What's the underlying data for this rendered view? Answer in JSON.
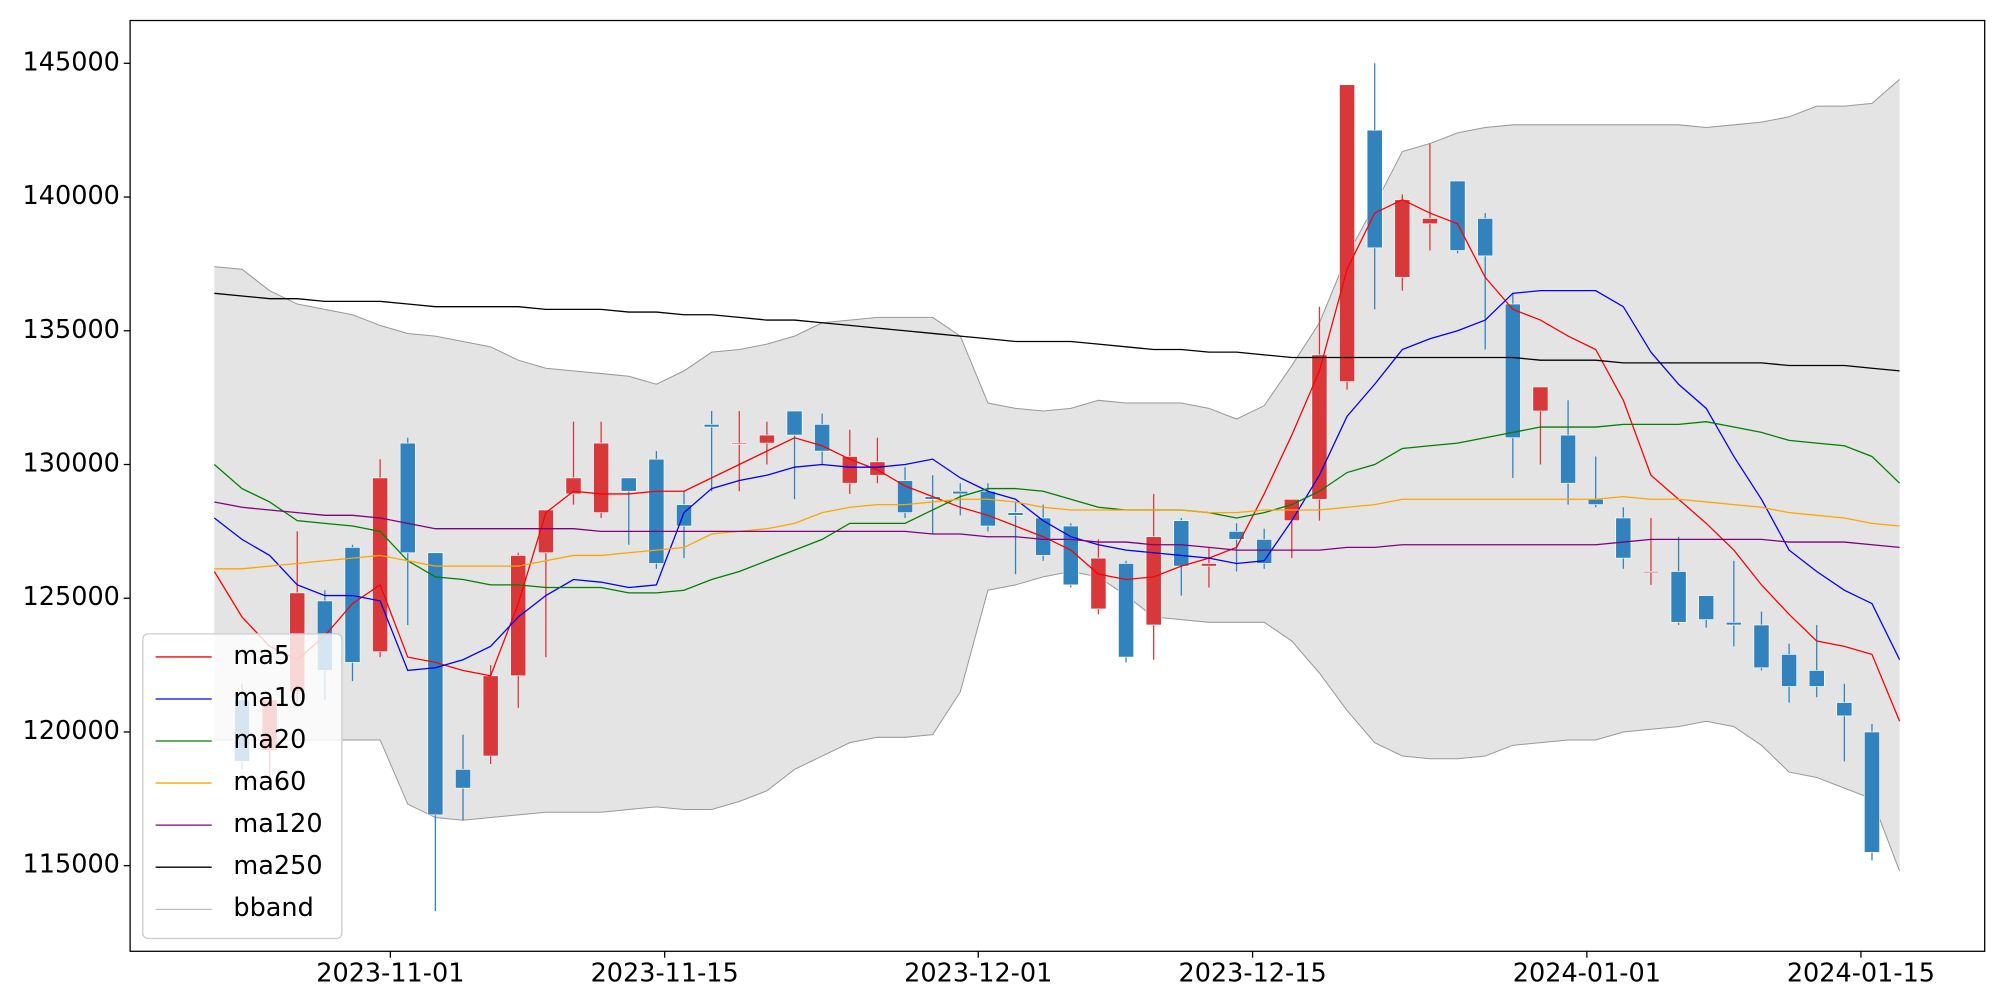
{
  "chart_data": {
    "type": "candlestick",
    "xlim": [
      -3.05,
      64.08
    ],
    "xticks": [
      {
        "value": 6.37,
        "label": "2023-11-01"
      },
      {
        "value": 16.3,
        "label": "2023-11-15"
      },
      {
        "value": 27.65,
        "label": "2023-12-01"
      },
      {
        "value": 37.58,
        "label": "2023-12-15"
      },
      {
        "value": 49.68,
        "label": "2024-01-01"
      },
      {
        "value": 59.6,
        "label": "2024-01-15"
      }
    ],
    "ylim": [
      111800,
      146600
    ],
    "yticks": [
      115000,
      120000,
      125000,
      130000,
      135000,
      140000,
      145000
    ],
    "up_color": "#d9383a",
    "down_color": "#3182bd",
    "legend": "lower left",
    "candles": {
      "open": [
        null,
        121200,
        119300,
        121500,
        124900,
        126900,
        123000,
        130800,
        126700,
        118600,
        119100,
        122100,
        126700,
        128900,
        128200,
        129500,
        130200,
        128500,
        131500,
        130800,
        130800,
        132000,
        131500,
        129300,
        129600,
        129400,
        128800,
        129000,
        129000,
        128200,
        128000,
        127700,
        124600,
        126300,
        124000,
        127900,
        126200,
        127500,
        127200,
        127900,
        128700,
        133100,
        142500,
        137000,
        139000,
        140600,
        139200,
        136000,
        132000,
        131100,
        128700,
        128000,
        126000,
        126000,
        125100,
        124100,
        124000,
        122900,
        122300,
        121100,
        120000,
        null
      ],
      "high": [
        null,
        121800,
        121500,
        127500,
        125300,
        127000,
        130200,
        131000,
        126700,
        119900,
        122500,
        126700,
        128300,
        131600,
        131600,
        129500,
        130500,
        129000,
        132000,
        132000,
        131600,
        132000,
        131900,
        131300,
        131000,
        129900,
        129600,
        129300,
        129300,
        128600,
        128500,
        127800,
        127200,
        126400,
        128900,
        128000,
        126900,
        127800,
        127600,
        128700,
        135900,
        144200,
        145000,
        140100,
        142000,
        140600,
        139400,
        136400,
        132900,
        132400,
        130300,
        128400,
        128000,
        127300,
        125100,
        126400,
        124500,
        123300,
        124000,
        121800,
        120300,
        null
      ],
      "low": [
        null,
        118600,
        118000,
        121000,
        121200,
        121900,
        122800,
        124000,
        113300,
        116700,
        118800,
        120900,
        122800,
        128500,
        128000,
        127000,
        126100,
        126500,
        129000,
        129000,
        130000,
        128700,
        130000,
        128900,
        129300,
        128000,
        127400,
        128100,
        127500,
        125900,
        126400,
        125400,
        124400,
        122600,
        122700,
        125100,
        125400,
        126000,
        126100,
        126500,
        127900,
        132800,
        135800,
        136500,
        138000,
        137900,
        134300,
        129500,
        130000,
        128500,
        128400,
        126100,
        125500,
        124000,
        123900,
        123200,
        122300,
        121100,
        121300,
        118900,
        115200,
        null
      ],
      "close": [
        null,
        118900,
        121200,
        125200,
        122300,
        122600,
        129500,
        126700,
        116900,
        117900,
        122100,
        126600,
        128300,
        129500,
        130800,
        129000,
        126300,
        127700,
        131400,
        130800,
        131100,
        131100,
        130500,
        130300,
        130100,
        128200,
        128700,
        128900,
        127700,
        128100,
        126600,
        125500,
        126500,
        122800,
        127300,
        126200,
        126300,
        127200,
        126300,
        128700,
        134100,
        144200,
        138100,
        139900,
        139200,
        138000,
        137800,
        131000,
        132900,
        129300,
        128500,
        126500,
        126000,
        124100,
        124200,
        124000,
        122400,
        121700,
        121700,
        120600,
        115500,
        null
      ]
    },
    "series": [
      {
        "name": "ma5",
        "color": "#ff0000",
        "values": [
          126000,
          124300,
          123200,
          122700,
          123600,
          124800,
          125500,
          122800,
          122600,
          122300,
          122100,
          124800,
          128200,
          129000,
          128900,
          128900,
          129000,
          129000,
          129500,
          130000,
          130500,
          131000,
          130700,
          130200,
          129800,
          129200,
          128800,
          128400,
          128100,
          127700,
          127300,
          126800,
          125900,
          125700,
          125800,
          126200,
          126500,
          126900,
          128900,
          131100,
          133500,
          137300,
          139400,
          139900,
          139400,
          139000,
          137000,
          135800,
          135400,
          134800,
          134300,
          132400,
          129600,
          128700,
          127800,
          126800,
          125500,
          124400,
          123400,
          123200,
          122900,
          120400
        ]
      },
      {
        "name": "ma10",
        "color": "#0000ff",
        "values": [
          128000,
          127200,
          126600,
          125500,
          125100,
          125100,
          124900,
          122300,
          122400,
          122700,
          123200,
          124300,
          125100,
          125700,
          125600,
          125400,
          125500,
          128200,
          129100,
          129400,
          129600,
          129900,
          130000,
          129900,
          129900,
          130000,
          130200,
          129500,
          129000,
          128700,
          127900,
          127300,
          127000,
          126800,
          126700,
          126600,
          126500,
          126300,
          126400,
          127900,
          129600,
          131800,
          133000,
          134300,
          134700,
          135000,
          135400,
          136400,
          136500,
          136500,
          136500,
          135900,
          134200,
          133000,
          132100,
          130300,
          128700,
          126800,
          126000,
          125300,
          124800,
          122700
        ]
      },
      {
        "name": "ma20",
        "color": "#008000",
        "values": [
          130000,
          129100,
          128600,
          127900,
          127800,
          127700,
          127500,
          126400,
          125800,
          125700,
          125500,
          125500,
          125400,
          125400,
          125400,
          125200,
          125200,
          125300,
          125700,
          126000,
          126400,
          126800,
          127200,
          127800,
          127800,
          127800,
          128300,
          128800,
          129100,
          129100,
          129000,
          128700,
          128400,
          128300,
          128300,
          128300,
          128200,
          128000,
          128200,
          128500,
          129000,
          129700,
          130000,
          130600,
          130700,
          130800,
          131000,
          131200,
          131400,
          131400,
          131400,
          131500,
          131500,
          131500,
          131600,
          131400,
          131200,
          130900,
          130800,
          130700,
          130300,
          129300
        ]
      },
      {
        "name": "ma60",
        "color": "#ffa500",
        "values": [
          126100,
          126100,
          126200,
          126300,
          126400,
          126500,
          126600,
          126400,
          126200,
          126200,
          126200,
          126200,
          126400,
          126600,
          126600,
          126700,
          126800,
          126900,
          127400,
          127500,
          127600,
          127800,
          128200,
          128400,
          128500,
          128500,
          128600,
          128700,
          128700,
          128600,
          128400,
          128300,
          128300,
          128300,
          128300,
          128300,
          128200,
          128200,
          128300,
          128300,
          128300,
          128400,
          128500,
          128700,
          128700,
          128700,
          128700,
          128700,
          128700,
          128700,
          128700,
          128800,
          128700,
          128700,
          128600,
          128500,
          128400,
          128200,
          128100,
          128000,
          127800,
          127700
        ]
      },
      {
        "name": "ma120",
        "color": "#800080",
        "values": [
          128600,
          128400,
          128300,
          128200,
          128100,
          128100,
          128000,
          127800,
          127600,
          127600,
          127600,
          127600,
          127600,
          127600,
          127500,
          127500,
          127500,
          127500,
          127500,
          127500,
          127500,
          127500,
          127500,
          127500,
          127500,
          127500,
          127400,
          127400,
          127300,
          127300,
          127200,
          127200,
          127100,
          127100,
          127000,
          127000,
          126900,
          126800,
          126800,
          126800,
          126800,
          126900,
          126900,
          127000,
          127000,
          127000,
          127000,
          127000,
          127000,
          127000,
          127000,
          127100,
          127200,
          127200,
          127200,
          127200,
          127200,
          127100,
          127100,
          127100,
          127000,
          126900
        ]
      },
      {
        "name": "ma250",
        "color": "#000000",
        "values": [
          136400,
          136300,
          136200,
          136200,
          136100,
          136100,
          136100,
          136000,
          135900,
          135900,
          135900,
          135900,
          135800,
          135800,
          135800,
          135700,
          135700,
          135600,
          135600,
          135500,
          135400,
          135400,
          135300,
          135200,
          135100,
          135000,
          134900,
          134800,
          134700,
          134600,
          134600,
          134600,
          134500,
          134400,
          134300,
          134300,
          134200,
          134200,
          134100,
          134000,
          134000,
          134000,
          134000,
          134000,
          134000,
          134000,
          134000,
          134000,
          133900,
          133900,
          133900,
          133800,
          133800,
          133800,
          133800,
          133800,
          133800,
          133700,
          133700,
          133700,
          133600,
          133500
        ]
      }
    ],
    "bband": {
      "name": "bband",
      "color": "#999999",
      "fill": "#e4e4e4",
      "upper": [
        137400,
        137300,
        136500,
        136000,
        135800,
        135600,
        135200,
        134900,
        134800,
        134600,
        134400,
        133900,
        133600,
        133500,
        133400,
        133300,
        133000,
        133500,
        134200,
        134300,
        134500,
        134800,
        135300,
        135400,
        135500,
        135500,
        135500,
        134800,
        132300,
        132100,
        132000,
        132100,
        132400,
        132300,
        132300,
        132300,
        132100,
        131700,
        132200,
        133700,
        135300,
        137800,
        139700,
        141700,
        142000,
        142400,
        142600,
        142700,
        142700,
        142700,
        142700,
        142700,
        142700,
        142700,
        142600,
        142700,
        142800,
        143000,
        143400,
        143400,
        143500,
        144400
      ],
      "lower": [
        119700,
        119700,
        119700,
        119700,
        119700,
        119700,
        119700,
        117300,
        116800,
        116700,
        116800,
        116900,
        117000,
        117000,
        117000,
        117100,
        117200,
        117100,
        117100,
        117400,
        117800,
        118600,
        119100,
        119600,
        119800,
        119800,
        119900,
        121500,
        125300,
        125500,
        125800,
        126000,
        125800,
        125100,
        124300,
        124200,
        124100,
        124100,
        124100,
        123400,
        122200,
        120800,
        119600,
        119100,
        119000,
        119000,
        119100,
        119500,
        119600,
        119700,
        119700,
        120000,
        120100,
        120200,
        120400,
        120200,
        119500,
        118500,
        118300,
        117900,
        117500,
        114800
      ]
    }
  }
}
